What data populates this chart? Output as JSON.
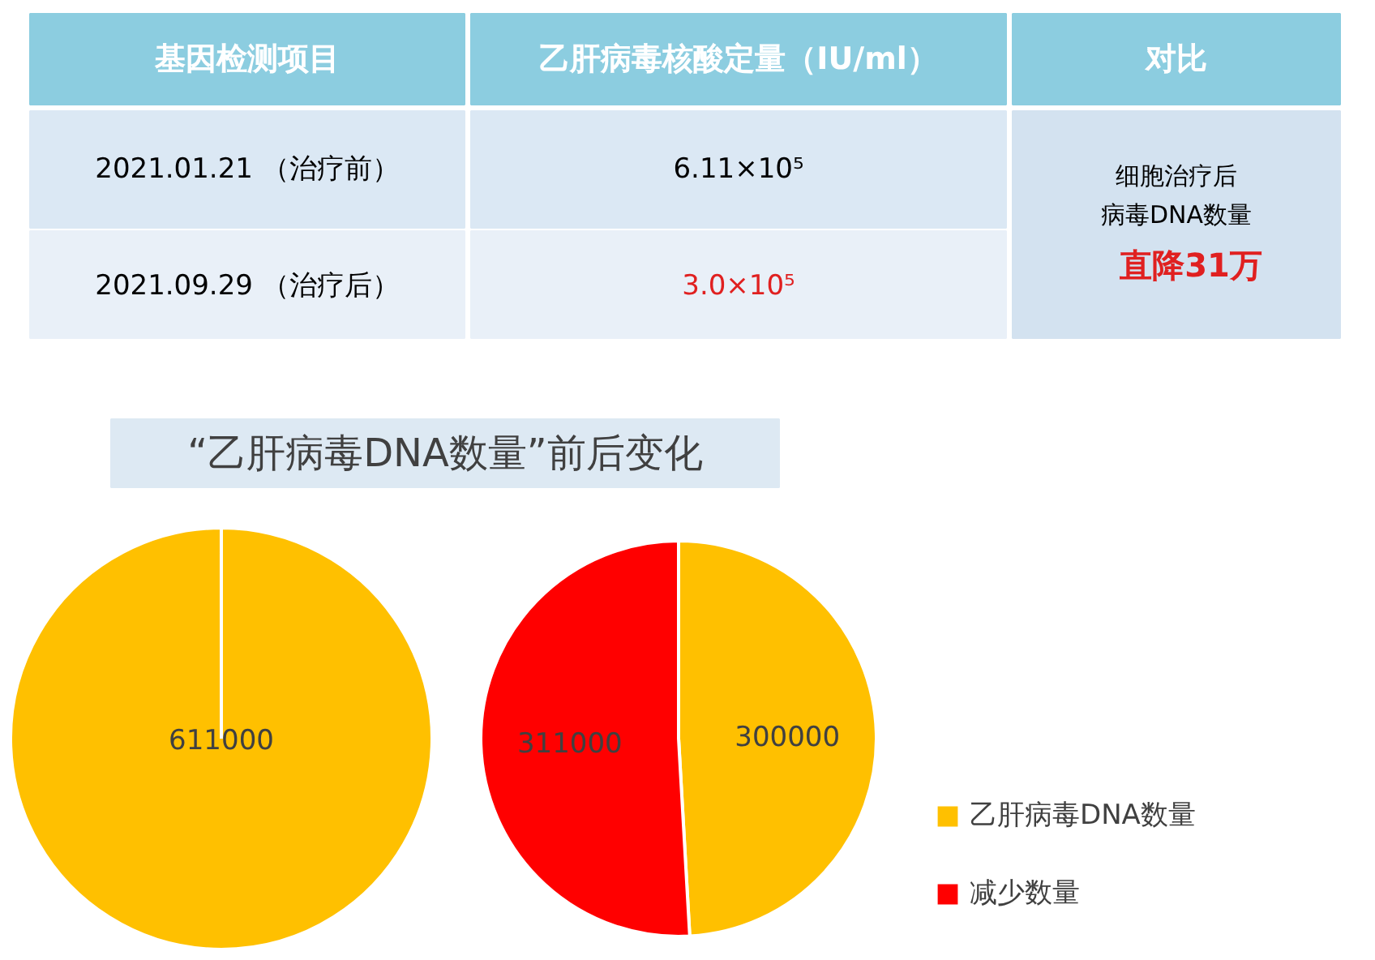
{
  "chart_data": [
    {
      "type": "other",
      "annotations": [
        "基因检测项目",
        "乙肝病毒核酸定量（IU/ml）",
        "对比",
        "2021.01.21 （治疗前）",
        "6.11×10⁵",
        "2021.09.29 （治疗后）",
        "3.0×10⁵",
        "细胞治疗后",
        "病毒DNA数量",
        "直降31万"
      ]
    },
    {
      "type": "pie",
      "title": "“乙肝病毒DNA数量”前后变化",
      "categories": [
        null
      ],
      "values": [
        611000
      ],
      "colors": [
        "#ffc000"
      ],
      "data_labels": true
    },
    {
      "type": "pie",
      "categories": [
        "乙肝病毒DNA数量",
        "减少数量"
      ],
      "values": [
        300000,
        311000
      ],
      "colors": [
        "#ffc000",
        "#ff0000"
      ],
      "data_labels": true,
      "legend": "right"
    }
  ]
}
